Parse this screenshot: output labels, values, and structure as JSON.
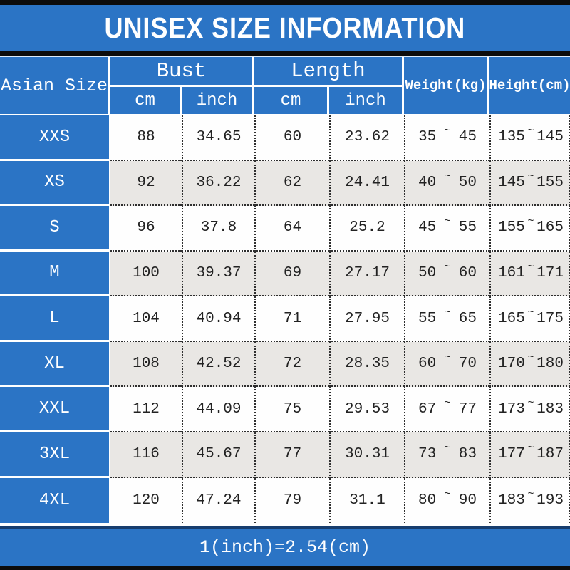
{
  "title": "UNISEX SIZE INFORMATION",
  "footer_note": "1(inch)=2.54(cm)",
  "colors": {
    "blue": "#2b74c5",
    "navy": "#173d6e",
    "ink": "#0c0c0c",
    "row_alt": "#e9e7e4",
    "text": "#222222"
  },
  "table": {
    "corner_header": "Asian Size",
    "tilde": "~",
    "groups": [
      {
        "label": "Bust",
        "sub": [
          "cm",
          "inch"
        ]
      },
      {
        "label": "Length",
        "sub": [
          "cm",
          "inch"
        ]
      }
    ],
    "single_headers": [
      "Weight(kg)",
      "Height(cm)"
    ],
    "rows": [
      {
        "size": "XXS",
        "bust_cm": "88",
        "bust_inch": "34.65",
        "length_cm": "60",
        "length_inch": "23.62",
        "weight": [
          "35",
          "45"
        ],
        "height": [
          "135",
          "145"
        ]
      },
      {
        "size": "XS",
        "bust_cm": "92",
        "bust_inch": "36.22",
        "length_cm": "62",
        "length_inch": "24.41",
        "weight": [
          "40",
          "50"
        ],
        "height": [
          "145",
          "155"
        ]
      },
      {
        "size": "S",
        "bust_cm": "96",
        "bust_inch": "37.8",
        "length_cm": "64",
        "length_inch": "25.2",
        "weight": [
          "45",
          "55"
        ],
        "height": [
          "155",
          "165"
        ]
      },
      {
        "size": "M",
        "bust_cm": "100",
        "bust_inch": "39.37",
        "length_cm": "69",
        "length_inch": "27.17",
        "weight": [
          "50",
          "60"
        ],
        "height": [
          "161",
          "171"
        ]
      },
      {
        "size": "L",
        "bust_cm": "104",
        "bust_inch": "40.94",
        "length_cm": "71",
        "length_inch": "27.95",
        "weight": [
          "55",
          "65"
        ],
        "height": [
          "165",
          "175"
        ]
      },
      {
        "size": "XL",
        "bust_cm": "108",
        "bust_inch": "42.52",
        "length_cm": "72",
        "length_inch": "28.35",
        "weight": [
          "60",
          "70"
        ],
        "height": [
          "170",
          "180"
        ]
      },
      {
        "size": "XXL",
        "bust_cm": "112",
        "bust_inch": "44.09",
        "length_cm": "75",
        "length_inch": "29.53",
        "weight": [
          "67",
          "77"
        ],
        "height": [
          "173",
          "183"
        ]
      },
      {
        "size": "3XL",
        "bust_cm": "116",
        "bust_inch": "45.67",
        "length_cm": "77",
        "length_inch": "30.31",
        "weight": [
          "73",
          "83"
        ],
        "height": [
          "177",
          "187"
        ]
      },
      {
        "size": "4XL",
        "bust_cm": "120",
        "bust_inch": "47.24",
        "length_cm": "79",
        "length_inch": "31.1",
        "weight": [
          "80",
          "90"
        ],
        "height": [
          "183",
          "193"
        ]
      }
    ]
  },
  "chart_data": {
    "type": "table",
    "title": "UNISEX SIZE INFORMATION",
    "columns": [
      "Asian Size",
      "Bust cm",
      "Bust inch",
      "Length cm",
      "Length inch",
      "Weight(kg)",
      "Height(cm)"
    ],
    "rows": [
      [
        "XXS",
        "88",
        "34.65",
        "60",
        "23.62",
        "35~45",
        "135~145"
      ],
      [
        "XS",
        "92",
        "36.22",
        "62",
        "24.41",
        "40~50",
        "145~155"
      ],
      [
        "S",
        "96",
        "37.8",
        "64",
        "25.2",
        "45~55",
        "155~165"
      ],
      [
        "M",
        "100",
        "39.37",
        "69",
        "27.17",
        "50~60",
        "161~171"
      ],
      [
        "L",
        "104",
        "40.94",
        "71",
        "27.95",
        "55~65",
        "165~175"
      ],
      [
        "XL",
        "108",
        "42.52",
        "72",
        "28.35",
        "60~70",
        "170~180"
      ],
      [
        "XXL",
        "112",
        "44.09",
        "75",
        "29.53",
        "67~77",
        "173~183"
      ],
      [
        "3XL",
        "116",
        "45.67",
        "77",
        "30.31",
        "73~83",
        "177~187"
      ],
      [
        "4XL",
        "120",
        "47.24",
        "79",
        "31.1",
        "80~90",
        "183~193"
      ]
    ],
    "note": "1(inch)=2.54(cm)"
  }
}
